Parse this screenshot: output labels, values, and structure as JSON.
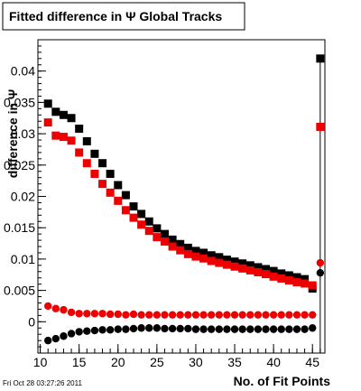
{
  "title": "Fitted difference in Ψ  Global Tracks",
  "timestamp": "Fri Oct 28 03:27:26 2011",
  "chart_data": {
    "type": "scatter",
    "title": "Fitted difference in Ψ  Global Tracks",
    "xlabel": "No. of Fit Points",
    "ylabel": "difference in Ψ",
    "xlim": [
      9.7,
      46.6
    ],
    "ylim": [
      -0.005,
      0.045
    ],
    "x_ticks": [
      "10",
      "15",
      "20",
      "25",
      "30",
      "35",
      "40",
      "45"
    ],
    "y_ticks": [
      "0",
      "0.005",
      "0.01",
      "0.015",
      "0.02",
      "0.025",
      "0.03",
      "0.035",
      "0.04"
    ],
    "grid": false,
    "legend": "none",
    "series": [
      {
        "marker": "square",
        "color": "#000000",
        "x": [
          11,
          12,
          13,
          14,
          15,
          16,
          17,
          18,
          19,
          20,
          21,
          22,
          23,
          24,
          25,
          26,
          27,
          28,
          29,
          30,
          31,
          32,
          33,
          34,
          35,
          36,
          37,
          38,
          39,
          40,
          41,
          42,
          43,
          44,
          45,
          46
        ],
        "y": [
          0.0348,
          0.0335,
          0.033,
          0.0325,
          0.0308,
          0.0288,
          0.0268,
          0.0253,
          0.0236,
          0.0218,
          0.0202,
          0.0184,
          0.0172,
          0.016,
          0.0149,
          0.014,
          0.0131,
          0.0124,
          0.0118,
          0.0113,
          0.011,
          0.0106,
          0.0103,
          0.0099,
          0.0096,
          0.0093,
          0.009,
          0.0087,
          0.0084,
          0.0081,
          0.0077,
          0.0074,
          0.0071,
          0.0068,
          0.0053,
          0.042
        ]
      },
      {
        "marker": "square",
        "color": "#ee0000",
        "x": [
          11,
          12,
          13,
          14,
          15,
          16,
          17,
          18,
          19,
          20,
          21,
          22,
          23,
          24,
          25,
          26,
          27,
          28,
          29,
          30,
          31,
          32,
          33,
          34,
          35,
          36,
          37,
          38,
          39,
          40,
          41,
          42,
          43,
          44,
          45,
          46
        ],
        "y": [
          0.0318,
          0.0297,
          0.0295,
          0.0289,
          0.027,
          0.0253,
          0.0236,
          0.022,
          0.0206,
          0.0193,
          0.0178,
          0.0166,
          0.0155,
          0.0145,
          0.0135,
          0.0128,
          0.012,
          0.0114,
          0.0108,
          0.0104,
          0.0101,
          0.0097,
          0.0094,
          0.0091,
          0.0088,
          0.0085,
          0.0082,
          0.0079,
          0.0076,
          0.0072,
          0.0069,
          0.0066,
          0.0063,
          0.0061,
          0.0058,
          0.0311
        ]
      },
      {
        "marker": "circle",
        "color": "#ee0000",
        "x": [
          11,
          12,
          13,
          14,
          15,
          16,
          17,
          18,
          19,
          20,
          21,
          22,
          23,
          24,
          25,
          26,
          27,
          28,
          29,
          30,
          31,
          32,
          33,
          34,
          35,
          36,
          37,
          38,
          39,
          40,
          41,
          42,
          43,
          44,
          45,
          46
        ],
        "y": [
          0.0025,
          0.0021,
          0.0019,
          0.0015,
          0.0013,
          0.0013,
          0.0013,
          0.0013,
          0.0012,
          0.0012,
          0.0011,
          0.0012,
          0.0011,
          0.0011,
          0.0011,
          0.0011,
          0.0011,
          0.0011,
          0.0011,
          0.0011,
          0.0011,
          0.0011,
          0.0011,
          0.0011,
          0.0011,
          0.0011,
          0.0011,
          0.0011,
          0.0011,
          0.0011,
          0.0011,
          0.0011,
          0.0011,
          0.0011,
          0.0011,
          0.0094
        ]
      },
      {
        "marker": "circle",
        "color": "#000000",
        "x": [
          11,
          12,
          13,
          14,
          15,
          16,
          17,
          18,
          19,
          20,
          21,
          22,
          23,
          24,
          25,
          26,
          27,
          28,
          29,
          30,
          31,
          32,
          33,
          34,
          35,
          36,
          37,
          38,
          39,
          40,
          41,
          42,
          43,
          44,
          45,
          46
        ],
        "y": [
          -0.003,
          -0.0027,
          -0.0023,
          -0.0019,
          -0.0016,
          -0.0015,
          -0.0014,
          -0.0013,
          -0.0013,
          -0.0012,
          -0.0012,
          -0.0011,
          -0.001,
          -0.001,
          -0.001,
          -0.0011,
          -0.0011,
          -0.0011,
          -0.0011,
          -0.0012,
          -0.0012,
          -0.0012,
          -0.0012,
          -0.0012,
          -0.0012,
          -0.0012,
          -0.0012,
          -0.0012,
          -0.0012,
          -0.0012,
          -0.0012,
          -0.0012,
          -0.0012,
          -0.0012,
          -0.001,
          0.0078
        ]
      }
    ]
  }
}
